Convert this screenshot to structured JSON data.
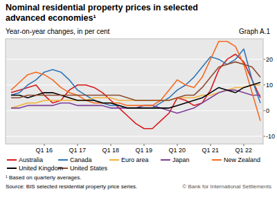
{
  "chart_data": {
    "type": "line",
    "title": "Nominal residential property prices in selected advanced economies¹",
    "subtitle": "Year-on-year changes, in per cent",
    "annotations": [
      "Graph A.1",
      "¹ Based on quarterly averages.",
      "Source: BIS selected residential property price series.",
      "© Bank for International Settlements"
    ],
    "categories": [
      null,
      null,
      null,
      null,
      "Q1 16",
      null,
      null,
      null,
      "Q1 17",
      null,
      null,
      null,
      "Q1 18",
      null,
      null,
      null,
      "Q1 19",
      null,
      null,
      null,
      "Q1 20",
      null,
      null,
      null,
      "Q1 21",
      null,
      null,
      null,
      "Q1 22",
      null,
      null
    ],
    "series": [
      {
        "name": "Australia",
        "color": "#d7191c",
        "values": [
          7,
          8,
          9,
          10,
          6,
          3,
          4,
          8,
          10,
          10,
          9,
          7,
          4,
          1,
          -2,
          -5,
          -7,
          -7,
          -4,
          -1,
          5,
          4,
          2,
          3,
          8,
          16,
          20,
          22,
          19,
          12,
          5
        ]
      },
      {
        "name": "Canada",
        "color": "#2f75b5",
        "values": [
          6,
          7,
          10,
          12,
          15,
          16,
          15,
          12,
          8,
          6,
          4,
          3,
          2,
          2,
          1,
          1,
          1,
          1,
          3,
          5,
          8,
          10,
          13,
          17,
          21,
          20,
          18,
          20,
          24,
          12,
          3
        ]
      },
      {
        "name": "Euro area",
        "color": "#f2b134",
        "values": [
          1,
          2,
          3,
          3,
          4,
          4,
          4,
          4,
          4,
          4,
          5,
          5,
          5,
          4,
          4,
          4,
          4,
          4,
          4,
          4,
          5,
          5,
          5,
          6,
          6,
          7,
          8,
          9,
          9,
          10,
          10
        ]
      },
      {
        "name": "Japan",
        "color": "#7d3f98",
        "values": [
          1,
          1,
          2,
          2,
          2,
          2,
          3,
          3,
          2,
          2,
          2,
          2,
          1,
          1,
          1,
          1,
          2,
          2,
          1,
          0,
          -1,
          0,
          1,
          3,
          5,
          7,
          8,
          8,
          7,
          6,
          6
        ]
      },
      {
        "name": "New Zealand",
        "color": "#f26b21",
        "values": [
          8,
          11,
          14,
          15,
          14,
          12,
          9,
          7,
          6,
          4,
          3,
          3,
          3,
          3,
          2,
          2,
          2,
          2,
          4,
          8,
          12,
          10,
          9,
          13,
          20,
          27,
          27,
          25,
          18,
          7,
          -4
        ]
      },
      {
        "name": "United Kingdom",
        "color": "#000000",
        "values": [
          6,
          6,
          5,
          6,
          7,
          7,
          6,
          5,
          4,
          4,
          4,
          3,
          3,
          2,
          1,
          1,
          1,
          1,
          1,
          1,
          2,
          3,
          4,
          5,
          7,
          9,
          8,
          7,
          9,
          10,
          11
        ]
      },
      {
        "name": "United States",
        "color": "#8c4a2f",
        "values": [
          5,
          5,
          6,
          6,
          6,
          6,
          6,
          6,
          6,
          6,
          6,
          6,
          6,
          6,
          5,
          4,
          4,
          4,
          4,
          4,
          5,
          6,
          6,
          9,
          13,
          17,
          18,
          19,
          18,
          17,
          13
        ]
      }
    ],
    "ylim": [
      -13,
      28
    ],
    "yticks": [
      -10,
      0,
      10,
      20
    ],
    "grid": true,
    "legend": "bottom"
  }
}
